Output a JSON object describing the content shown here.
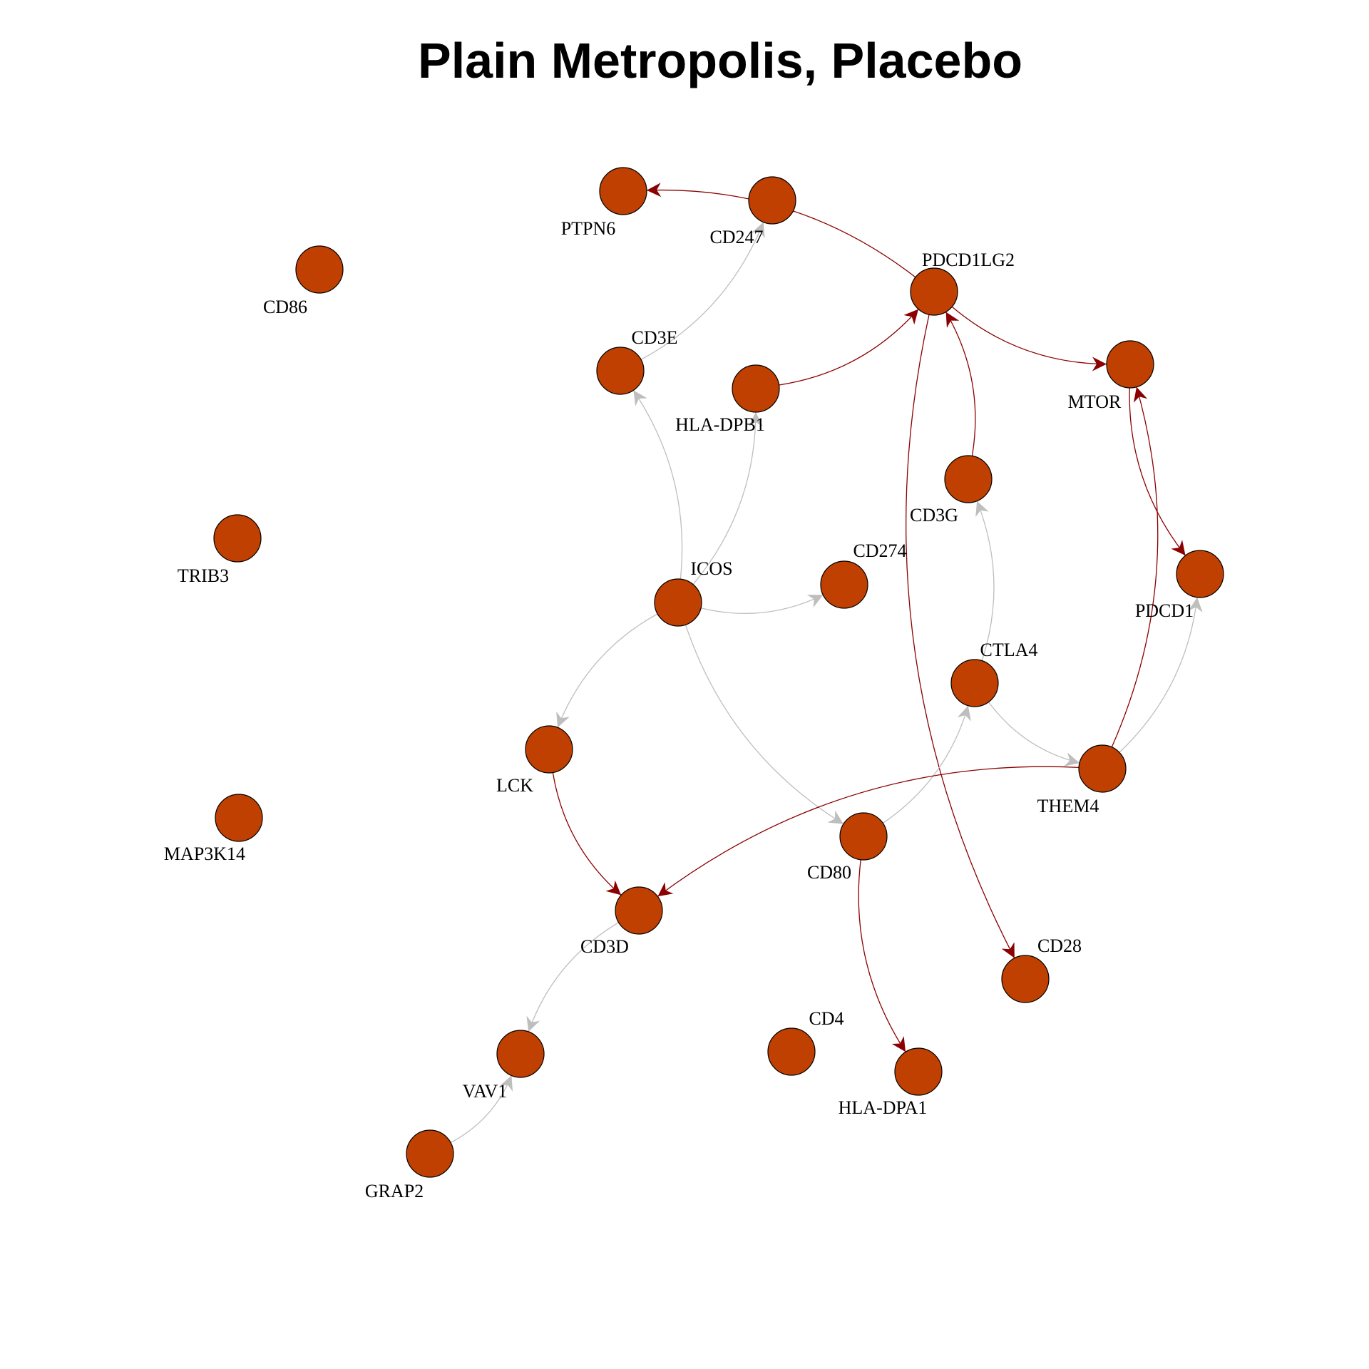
{
  "title": "Plain Metropolis, Placebo",
  "colors": {
    "node_fill": "#bf4000",
    "node_stroke": "#000000",
    "edge_strong": "#8b0000",
    "edge_weak": "#bebebe"
  },
  "nodes": [
    {
      "id": "PTPN6",
      "label": "PTPN6"
    },
    {
      "id": "CD247",
      "label": "CD247"
    },
    {
      "id": "CD86",
      "label": "CD86"
    },
    {
      "id": "PDCD1LG2",
      "label": "PDCD1LG2"
    },
    {
      "id": "CD3E",
      "label": "CD3E"
    },
    {
      "id": "HLA-DPB1",
      "label": "HLA-DPB1"
    },
    {
      "id": "MTOR",
      "label": "MTOR"
    },
    {
      "id": "CD3G",
      "label": "CD3G"
    },
    {
      "id": "TRIB3",
      "label": "TRIB3"
    },
    {
      "id": "ICOS",
      "label": "ICOS"
    },
    {
      "id": "CD274",
      "label": "CD274"
    },
    {
      "id": "PDCD1",
      "label": "PDCD1"
    },
    {
      "id": "CTLA4",
      "label": "CTLA4"
    },
    {
      "id": "LCK",
      "label": "LCK"
    },
    {
      "id": "THEM4",
      "label": "THEM4"
    },
    {
      "id": "MAP3K14",
      "label": "MAP3K14"
    },
    {
      "id": "CD80",
      "label": "CD80"
    },
    {
      "id": "CD3D",
      "label": "CD3D"
    },
    {
      "id": "CD28",
      "label": "CD28"
    },
    {
      "id": "CD4",
      "label": "CD4"
    },
    {
      "id": "VAV1",
      "label": "VAV1"
    },
    {
      "id": "HLA-DPA1",
      "label": "HLA-DPA1"
    },
    {
      "id": "GRAP2",
      "label": "GRAP2"
    }
  ],
  "edges": [
    {
      "from": "PDCD1LG2",
      "to": "PTPN6",
      "type": "strong"
    },
    {
      "from": "CD3E",
      "to": "CD247",
      "type": "weak"
    },
    {
      "from": "HLA-DPB1",
      "to": "PDCD1LG2",
      "type": "strong"
    },
    {
      "from": "PDCD1LG2",
      "to": "MTOR",
      "type": "strong"
    },
    {
      "from": "CD3G",
      "to": "PDCD1LG2",
      "type": "strong"
    },
    {
      "from": "PDCD1LG2",
      "to": "CD28",
      "type": "strong"
    },
    {
      "from": "MTOR",
      "to": "PDCD1",
      "type": "strong"
    },
    {
      "from": "THEM4",
      "to": "MTOR",
      "type": "strong"
    },
    {
      "from": "ICOS",
      "to": "CD3E",
      "type": "weak"
    },
    {
      "from": "ICOS",
      "to": "HLA-DPB1",
      "type": "weak"
    },
    {
      "from": "ICOS",
      "to": "CD274",
      "type": "weak"
    },
    {
      "from": "ICOS",
      "to": "LCK",
      "type": "weak"
    },
    {
      "from": "ICOS",
      "to": "CD80",
      "type": "weak"
    },
    {
      "from": "CTLA4",
      "to": "CD3G",
      "type": "weak"
    },
    {
      "from": "CTLA4",
      "to": "THEM4",
      "type": "weak"
    },
    {
      "from": "THEM4",
      "to": "PDCD1",
      "type": "weak"
    },
    {
      "from": "CD80",
      "to": "CTLA4",
      "type": "weak"
    },
    {
      "from": "LCK",
      "to": "CD3D",
      "type": "strong"
    },
    {
      "from": "THEM4",
      "to": "CD3D",
      "type": "strong"
    },
    {
      "from": "CD80",
      "to": "HLA-DPA1",
      "type": "strong"
    },
    {
      "from": "CD3D",
      "to": "VAV1",
      "type": "weak"
    },
    {
      "from": "GRAP2",
      "to": "VAV1",
      "type": "weak"
    }
  ]
}
